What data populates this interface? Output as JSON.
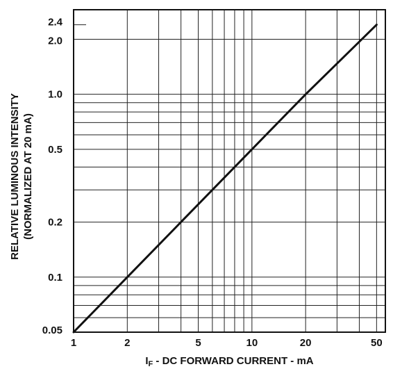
{
  "chart_data": {
    "type": "line",
    "scale": {
      "x": "log",
      "y": "log"
    },
    "xlim": [
      1,
      56
    ],
    "ylim": [
      0.05,
      2.9
    ],
    "grid": true,
    "x_ticks": [
      {
        "value": 1,
        "label": "1"
      },
      {
        "value": 2,
        "label": "2"
      },
      {
        "value": 5,
        "label": "5"
      },
      {
        "value": 10,
        "label": "10"
      },
      {
        "value": 20,
        "label": "20"
      },
      {
        "value": 50,
        "label": "50"
      }
    ],
    "y_ticks": [
      {
        "value": 0.05,
        "label": "0.05"
      },
      {
        "value": 0.1,
        "label": "0.1"
      },
      {
        "value": 0.2,
        "label": "0.2"
      },
      {
        "value": 0.5,
        "label": "0.5"
      },
      {
        "value": 1.0,
        "label": "1.0"
      },
      {
        "value": 2.0,
        "label": "2.0"
      },
      {
        "value": 2.4,
        "label": "2.4"
      }
    ],
    "x_gridlines": [
      2,
      3,
      4,
      5,
      6,
      7,
      8,
      9,
      10,
      20,
      30,
      40,
      50
    ],
    "y_gridlines": [
      0.06,
      0.07,
      0.08,
      0.09,
      0.1,
      0.2,
      0.3,
      0.4,
      0.5,
      0.6,
      0.7,
      0.8,
      0.9,
      1.0,
      2.0
    ],
    "series": [
      {
        "x": [
          1,
          2,
          4,
          10,
          20,
          50
        ],
        "y": [
          0.05,
          0.1,
          0.2,
          0.5,
          1.0,
          2.4
        ]
      }
    ],
    "xlabel_main": "I",
    "xlabel_sub": "F",
    "xlabel_rest": " - DC FORWARD CURRENT - mA",
    "ylabel_line1": "RELATIVE LUMINOUS INTENSITY",
    "ylabel_line2": "(NORMALIZED AT 20 mA)"
  }
}
